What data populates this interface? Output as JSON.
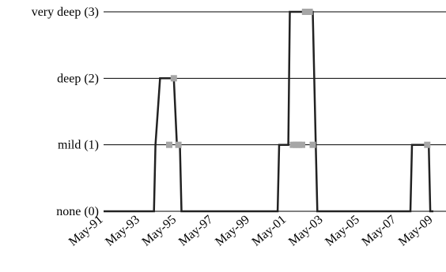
{
  "chart_data": {
    "type": "line",
    "title": "",
    "xlabel": "",
    "ylabel": "",
    "x_tick_labels": [
      "May-91",
      "May-93",
      "May-95",
      "May-97",
      "May-99",
      "May-01",
      "May-03",
      "May-05",
      "May-07",
      "May-09"
    ],
    "x_range": [
      "May-91",
      "May-09"
    ],
    "y_tick_labels": [
      {
        "value": 0,
        "label": "none (0)"
      },
      {
        "value": 1,
        "label": "mild (1)"
      },
      {
        "value": 2,
        "label": "deep (2)"
      },
      {
        "value": 3,
        "label": "very deep (3)"
      }
    ],
    "ylim": [
      0,
      3
    ],
    "grid": "horizontal lines at each level",
    "series": [
      {
        "color": "#222222",
        "points": [
          {
            "x": "1991-05",
            "y": 0
          },
          {
            "x": "1994-02",
            "y": 0
          },
          {
            "x": "1994-03",
            "y": 1
          },
          {
            "x": "1994-06",
            "y": 2
          },
          {
            "x": "1995-03",
            "y": 2
          },
          {
            "x": "1995-05",
            "y": 1
          },
          {
            "x": "1995-07",
            "y": 1
          },
          {
            "x": "1995-08",
            "y": 0
          },
          {
            "x": "2000-11",
            "y": 0
          },
          {
            "x": "2000-12",
            "y": 1
          },
          {
            "x": "2001-06",
            "y": 1
          },
          {
            "x": "2001-07",
            "y": 3
          },
          {
            "x": "2002-10",
            "y": 3
          },
          {
            "x": "2002-12",
            "y": 1
          },
          {
            "x": "2003-01",
            "y": 0
          },
          {
            "x": "2008-02",
            "y": 0
          },
          {
            "x": "2008-03",
            "y": 1
          },
          {
            "x": "2009-02",
            "y": 1
          },
          {
            "x": "2009-03",
            "y": 0
          },
          {
            "x": "2009-05",
            "y": 0
          }
        ]
      }
    ],
    "markers": {
      "color": "#a6a6a6",
      "points": [
        {
          "x": "1995-03",
          "y": 2
        },
        {
          "x": "1994-12",
          "y": 1
        },
        {
          "x": "1995-06",
          "y": 1
        },
        {
          "x": "2001-09",
          "y": 1
        },
        {
          "x": "2001-11",
          "y": 1
        },
        {
          "x": "2002-01",
          "y": 1
        },
        {
          "x": "2002-03",
          "y": 1
        },
        {
          "x": "2002-10",
          "y": 1
        },
        {
          "x": "2002-05",
          "y": 3
        },
        {
          "x": "2002-08",
          "y": 3
        },
        {
          "x": "2009-01",
          "y": 1
        }
      ]
    }
  }
}
